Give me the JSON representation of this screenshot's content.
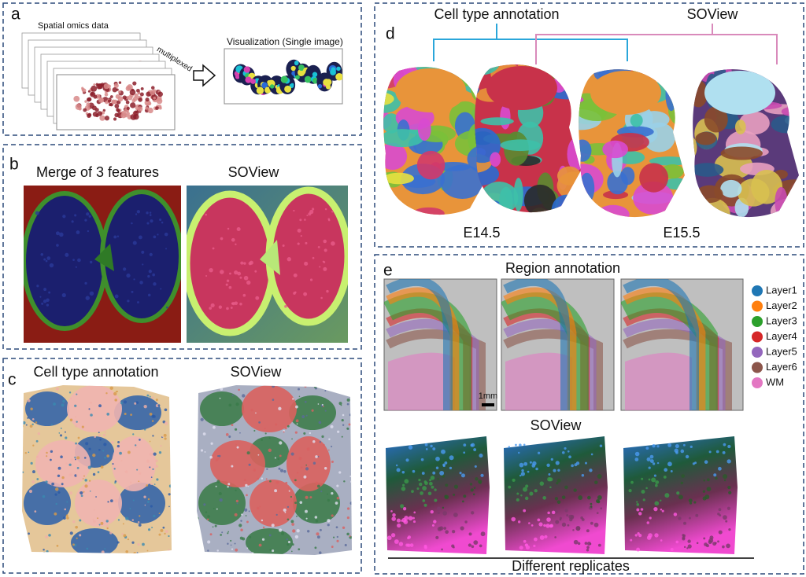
{
  "panels": {
    "a": {
      "label": "a",
      "input_title": "Spatial omics data",
      "stack_label": "multiplexed",
      "output_title": "Visualization (Single image)"
    },
    "b": {
      "label": "b",
      "titles": [
        "Merge of 3 features",
        "SOView"
      ]
    },
    "c": {
      "label": "c",
      "titles": [
        "Cell type annotation",
        "SOView"
      ]
    },
    "d": {
      "label": "d",
      "titles": [
        "Cell type annotation",
        "SOView"
      ],
      "stages": [
        "E14.5",
        "E15.5"
      ]
    },
    "e": {
      "label": "e",
      "top_title": "Region annotation",
      "scale_bar": "1mm",
      "bottom_title": "SOView",
      "footer": "Different replicates",
      "legend": [
        {
          "name": "Layer1",
          "color": "#1f77b4"
        },
        {
          "name": "Layer2",
          "color": "#ff7f0e"
        },
        {
          "name": "Layer3",
          "color": "#2ca02c"
        },
        {
          "name": "Layer4",
          "color": "#d62728"
        },
        {
          "name": "Layer5",
          "color": "#9467bd"
        },
        {
          "name": "Layer6",
          "color": "#8c564b"
        },
        {
          "name": "WM",
          "color": "#e377c2"
        }
      ]
    }
  }
}
